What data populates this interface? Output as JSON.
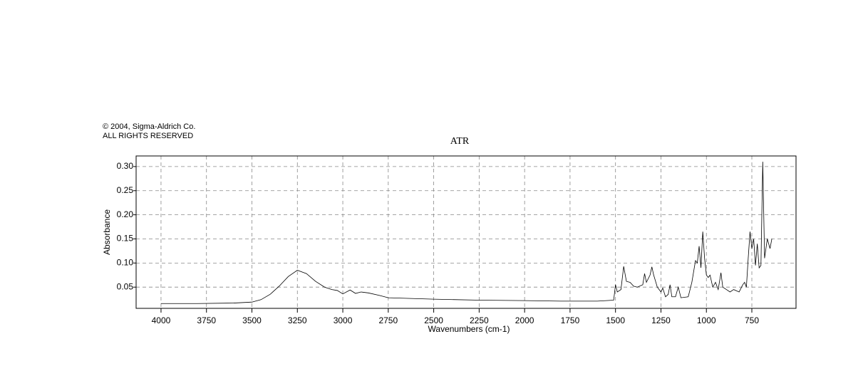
{
  "chart_data": {
    "type": "line",
    "copyright": [
      "© 2004, Sigma-Aldrich Co.",
      "ALL RIGHTS RESERVED"
    ],
    "title": "ATR",
    "xlabel": "Wavenumbers (cm-1)",
    "ylabel": "Absorbance",
    "color": "#000000",
    "grid": true,
    "xlim": [
      4137,
      507
    ],
    "ylim": [
      0.006,
      0.322
    ],
    "xticks": [
      4000,
      3750,
      3500,
      3250,
      3000,
      2750,
      2500,
      2250,
      2000,
      1750,
      1500,
      1250,
      1000,
      750
    ],
    "yticks": [
      0.05,
      {
        "value": 0.1,
        "label": "0.10"
      },
      0.15,
      {
        "value": 0.2,
        "label": "0.20"
      },
      0.25,
      {
        "value": 0.3,
        "label": "0.30"
      }
    ],
    "x": [
      4000,
      3800,
      3600,
      3500,
      3450,
      3400,
      3350,
      3300,
      3250,
      3200,
      3150,
      3100,
      3060,
      3030,
      3000,
      2960,
      2930,
      2900,
      2860,
      2800,
      2750,
      2500,
      2250,
      2000,
      1800,
      1600,
      1510,
      1500,
      1490,
      1470,
      1455,
      1440,
      1420,
      1400,
      1380,
      1350,
      1340,
      1330,
      1310,
      1300,
      1290,
      1270,
      1250,
      1240,
      1225,
      1210,
      1200,
      1190,
      1170,
      1155,
      1140,
      1100,
      1080,
      1060,
      1050,
      1040,
      1030,
      1020,
      1010,
      1000,
      990,
      980,
      965,
      950,
      935,
      920,
      910,
      890,
      870,
      850,
      820,
      800,
      790,
      780,
      770,
      760,
      750,
      740,
      730,
      720,
      710,
      700,
      690,
      680,
      665,
      650,
      640
    ],
    "values": [
      0.016,
      0.016,
      0.017,
      0.019,
      0.024,
      0.035,
      0.052,
      0.072,
      0.085,
      0.078,
      0.062,
      0.05,
      0.045,
      0.043,
      0.036,
      0.044,
      0.037,
      0.04,
      0.038,
      0.033,
      0.028,
      0.025,
      0.023,
      0.022,
      0.021,
      0.021,
      0.023,
      0.055,
      0.04,
      0.045,
      0.093,
      0.062,
      0.06,
      0.052,
      0.05,
      0.055,
      0.078,
      0.06,
      0.075,
      0.092,
      0.075,
      0.05,
      0.04,
      0.048,
      0.03,
      0.035,
      0.055,
      0.03,
      0.03,
      0.05,
      0.028,
      0.03,
      0.06,
      0.105,
      0.1,
      0.135,
      0.09,
      0.165,
      0.11,
      0.075,
      0.07,
      0.075,
      0.05,
      0.06,
      0.045,
      0.08,
      0.05,
      0.045,
      0.04,
      0.045,
      0.04,
      0.055,
      0.06,
      0.05,
      0.11,
      0.165,
      0.13,
      0.15,
      0.095,
      0.14,
      0.09,
      0.095,
      0.31,
      0.11,
      0.15,
      0.13,
      0.15
    ]
  }
}
